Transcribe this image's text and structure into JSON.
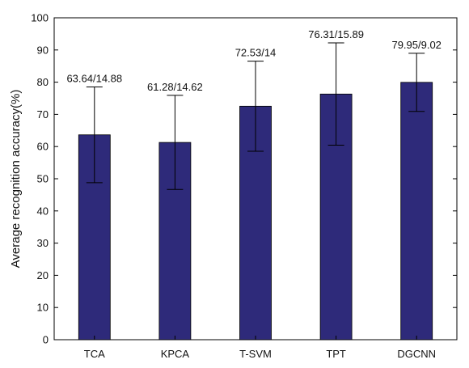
{
  "chart_data": {
    "type": "bar",
    "categories": [
      "TCA",
      "KPCA",
      "T-SVM",
      "TPT",
      "DGCNN"
    ],
    "values": [
      63.64,
      61.28,
      72.53,
      76.31,
      79.95
    ],
    "errors": [
      14.88,
      14.62,
      14,
      15.89,
      9.02
    ],
    "data_labels": [
      "63.64/14.88",
      "61.28/14.62",
      "72.53/14",
      "76.31/15.89",
      "79.95/9.02"
    ],
    "ylabel": "Average recognition accuracy(%)",
    "xlabel": "",
    "ylim": [
      0,
      100
    ],
    "yticks": [
      0,
      10,
      20,
      30,
      40,
      50,
      60,
      70,
      80,
      90,
      100
    ],
    "grid": false,
    "bar_color": "#2e2a7a"
  }
}
